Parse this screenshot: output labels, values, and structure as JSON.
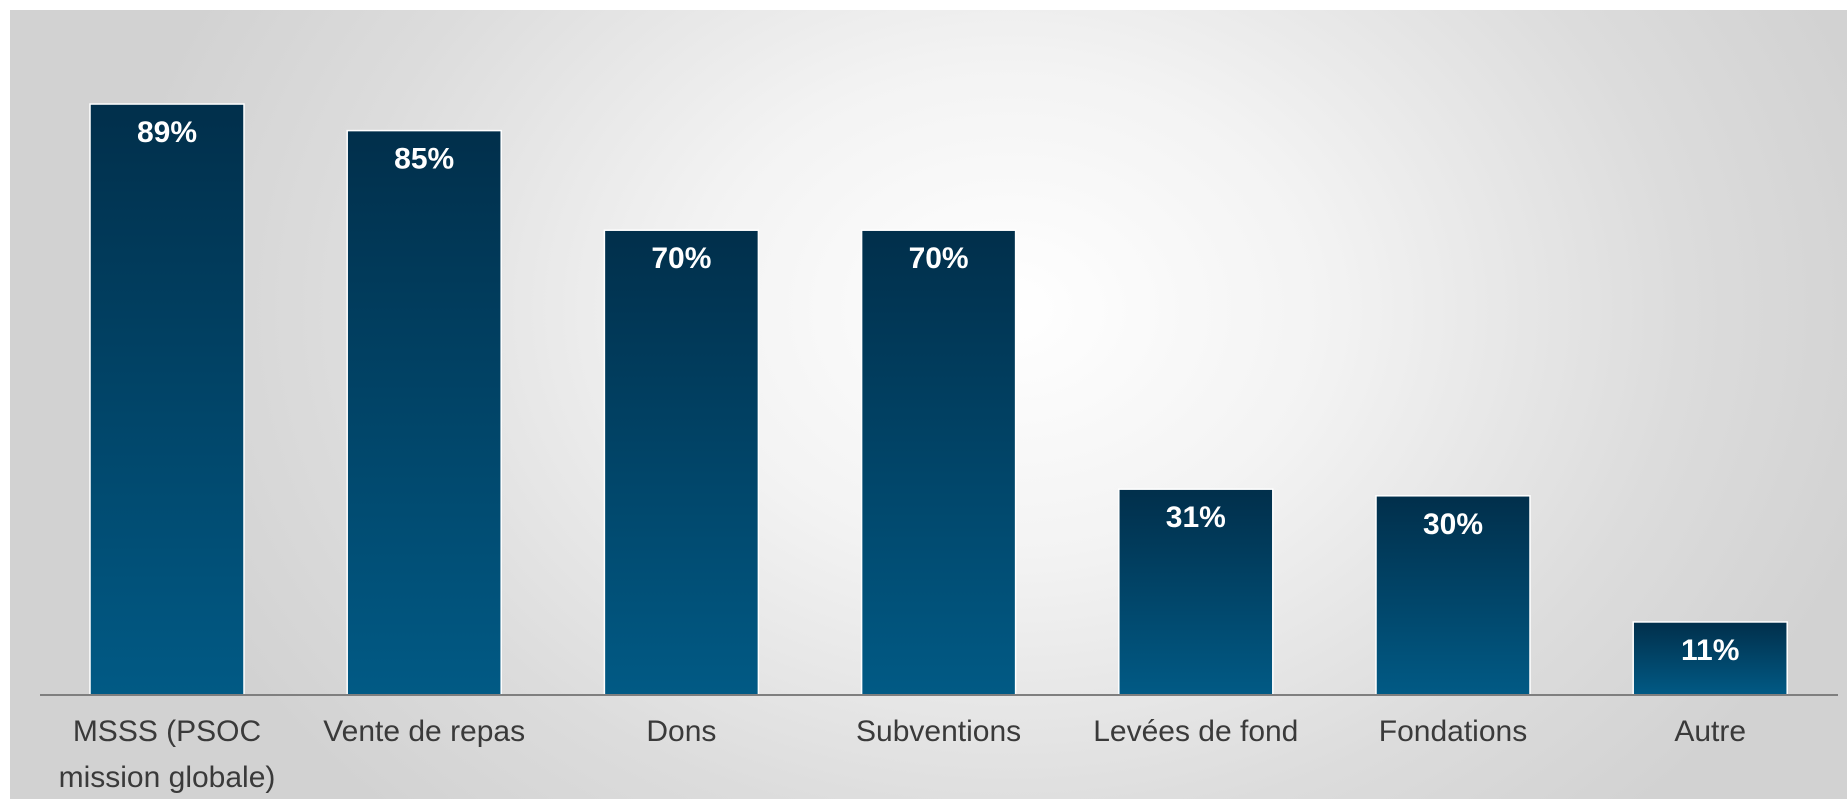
{
  "chart_data": {
    "type": "bar",
    "title": "",
    "xlabel": "",
    "ylabel": "",
    "categories": [
      [
        "MSSS (PSOC",
        "mission globale)"
      ],
      [
        "Vente de repas"
      ],
      [
        "Dons"
      ],
      [
        "Subventions"
      ],
      [
        "Levées de fond"
      ],
      [
        "Fondations"
      ],
      [
        "Autre"
      ]
    ],
    "values": [
      89,
      85,
      70,
      70,
      31,
      30,
      11
    ],
    "value_suffix": "%",
    "ylim": [
      0,
      100
    ],
    "grid": false,
    "legend": "none",
    "bar_color_top": "#012f4b",
    "bar_color_bottom": "#015a85",
    "bar_border": "#ffffff",
    "axis_color": "#7f7f7f"
  }
}
